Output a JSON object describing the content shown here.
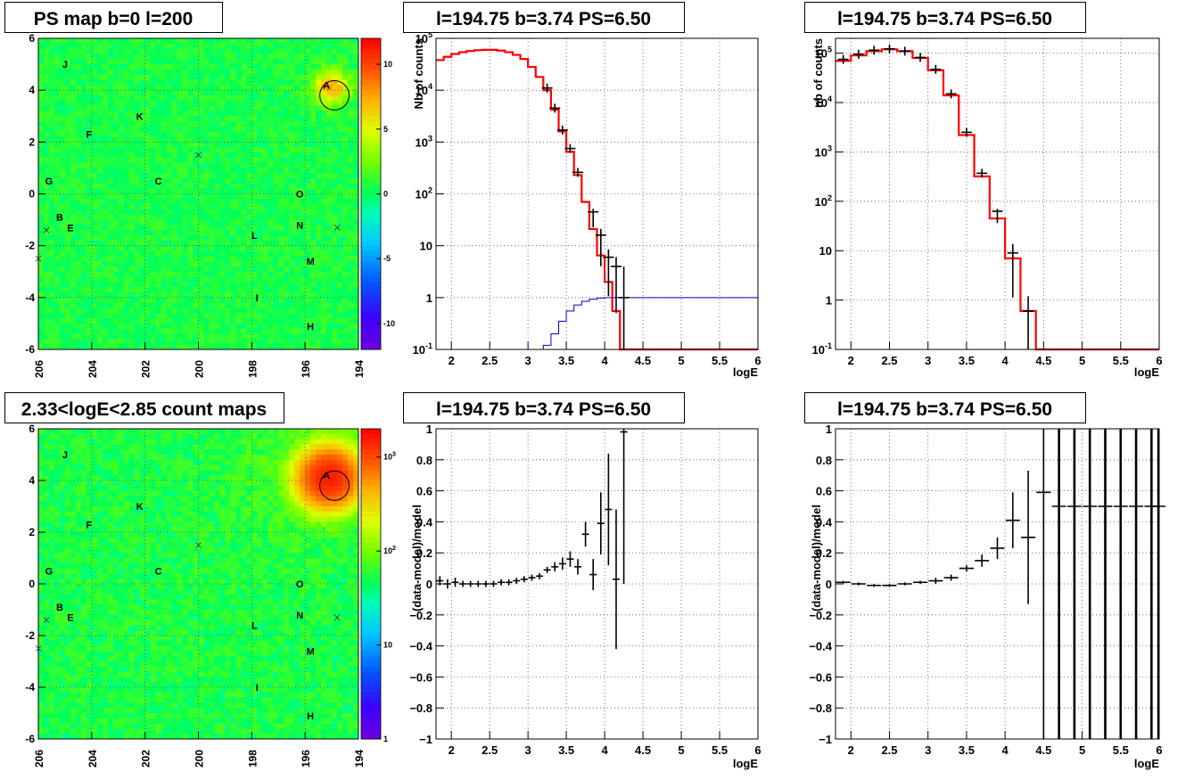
{
  "pads": [
    {
      "kind": "map",
      "title": "PS map b=0 l=200",
      "x_ticks": [
        "206",
        "204",
        "202",
        "200",
        "198",
        "196",
        "194"
      ],
      "y_ticks": [
        "6",
        "4",
        "2",
        "0",
        "-2",
        "-4",
        "-6"
      ],
      "palette_ticks": [
        "10",
        "5",
        "0",
        "-5",
        "-10"
      ],
      "labels": [
        "J",
        "A",
        "K",
        "F",
        "G",
        "C",
        "O",
        "B",
        "E",
        "N",
        "L",
        "M",
        "I",
        "H"
      ]
    },
    {
      "kind": "spectrum",
      "title": "l=194.75 b=3.74 PS=6.50",
      "ylabel": "Nb of counts",
      "xlabel": "logE",
      "x_ticks": [
        "2",
        "2.5",
        "3",
        "3.5",
        "4",
        "4.5",
        "5",
        "5.5",
        "6"
      ],
      "y_ticks": [
        "10^5",
        "10^4",
        "10^3",
        "10^2",
        "10",
        "1",
        "10^-1"
      ]
    },
    {
      "kind": "spectrum",
      "title": "l=194.75 b=3.74 PS=6.50",
      "ylabel": "nb of counts",
      "xlabel": "logE",
      "x_ticks": [
        "2",
        "2.5",
        "3",
        "3.5",
        "4",
        "4.5",
        "5",
        "5.5",
        "6"
      ],
      "y_ticks": [
        "10^5",
        "10^4",
        "10^3",
        "10^2",
        "10",
        "1",
        "10^-1"
      ]
    },
    {
      "kind": "map",
      "title": "2.33<logE<2.85 count maps",
      "x_ticks": [
        "206",
        "204",
        "202",
        "200",
        "198",
        "196",
        "194"
      ],
      "y_ticks": [
        "6",
        "4",
        "2",
        "0",
        "-2",
        "-4",
        "-6"
      ],
      "palette_ticks": [
        "10^3",
        "10^2",
        "10",
        "1"
      ],
      "labels": [
        "J",
        "A",
        "K",
        "F",
        "G",
        "C",
        "O",
        "B",
        "E",
        "N",
        "L",
        "M",
        "I",
        "H"
      ]
    },
    {
      "kind": "residual",
      "title": "l=194.75 b=3.74 PS=6.50",
      "ylabel": "(data-model)/model",
      "xlabel": "logE",
      "x_ticks": [
        "2",
        "2.5",
        "3",
        "3.5",
        "4",
        "4.5",
        "5",
        "5.5",
        "6"
      ],
      "y_ticks": [
        "1",
        "0.8",
        "0.6",
        "0.4",
        "0.2",
        "0",
        "−0.2",
        "−0.4",
        "−0.6",
        "−0.8",
        "−1"
      ]
    },
    {
      "kind": "residual",
      "title": "l=194.75 b=3.74 PS=6.50",
      "ylabel": "(data-model)/model",
      "xlabel": "logE",
      "x_ticks": [
        "2",
        "2.5",
        "3",
        "3.5",
        "4",
        "4.5",
        "5",
        "5.5",
        "6"
      ],
      "y_ticks": [
        "1",
        "0.8",
        "0.6",
        "0.4",
        "0.2",
        "0",
        "−0.2",
        "−0.4",
        "−0.6",
        "−0.8",
        "−1"
      ]
    }
  ],
  "chart_data": [
    {
      "type": "heatmap",
      "title": "PS map b=0 l=200",
      "xlim": [
        206,
        194
      ],
      "ylim": [
        -6,
        6
      ],
      "color_range": [
        -12,
        12
      ],
      "grid": true,
      "hotspot": {
        "x": 195,
        "y": 4.1,
        "level": 7
      },
      "circle": {
        "x": 194.9,
        "y": 3.8,
        "r": 0.55
      },
      "crosses": [
        {
          "x": 200,
          "y": 1.5
        },
        {
          "x": 205.7,
          "y": -1.4
        },
        {
          "x": 194.8,
          "y": -1.3
        },
        {
          "x": 206,
          "y": -2.5
        }
      ],
      "sources": [
        {
          "name": "J",
          "x": 205.0,
          "y": 5.0
        },
        {
          "name": "A",
          "x": 195.2,
          "y": 4.2
        },
        {
          "name": "K",
          "x": 202.2,
          "y": 3.0
        },
        {
          "name": "F",
          "x": 204.1,
          "y": 2.3
        },
        {
          "name": "G",
          "x": 205.6,
          "y": 0.5
        },
        {
          "name": "C",
          "x": 201.5,
          "y": 0.5
        },
        {
          "name": "O",
          "x": 196.2,
          "y": 0.0
        },
        {
          "name": "B",
          "x": 205.2,
          "y": -0.9
        },
        {
          "name": "E",
          "x": 204.8,
          "y": -1.3
        },
        {
          "name": "N",
          "x": 196.2,
          "y": -1.2
        },
        {
          "name": "L",
          "x": 197.9,
          "y": -1.6
        },
        {
          "name": "M",
          "x": 195.8,
          "y": -2.6
        },
        {
          "name": "I",
          "x": 197.8,
          "y": -4.0
        },
        {
          "name": "H",
          "x": 195.8,
          "y": -5.1
        }
      ]
    },
    {
      "type": "line",
      "title": "l=194.75 b=3.74 PS=6.50",
      "xlabel": "logE",
      "ylabel": "Nb of counts",
      "xlim": [
        1.8,
        6
      ],
      "ylim": [
        0.1,
        100000
      ],
      "log_y": true,
      "grid": true,
      "bin_edges": [
        1.8,
        1.9,
        2.0,
        2.1,
        2.2,
        2.3,
        2.4,
        2.5,
        2.6,
        2.7,
        2.8,
        2.9,
        3.0,
        3.1,
        3.2,
        3.3,
        3.4,
        3.5,
        3.6,
        3.7,
        3.8,
        3.9,
        4.0,
        4.1,
        4.2,
        4.3,
        4.4,
        4.5,
        4.6,
        4.7,
        4.8,
        4.9,
        5.0,
        5.1,
        5.2,
        5.3,
        5.4,
        5.5,
        5.6,
        5.7,
        5.8,
        5.9,
        6.0
      ],
      "series": [
        {
          "role": "model",
          "color": "#ff0000",
          "values": [
            38000,
            44000,
            50000,
            54000,
            57000,
            59000,
            60000,
            60000,
            58000,
            54000,
            48000,
            40000,
            28000,
            18000,
            10000,
            4200,
            1600,
            650,
            230,
            70,
            21,
            6.5,
            2.0,
            0.55,
            0.1,
            0.1,
            0.1,
            0.1,
            0.1,
            0.1,
            0.1,
            0.1,
            0.1,
            0.1,
            0.1,
            0.1,
            0.1,
            0.1,
            0.1,
            0.1,
            0.1,
            0.1
          ]
        },
        {
          "role": "background",
          "color": "#0000cc",
          "values": [
            0.1,
            0.1,
            0.1,
            0.1,
            0.1,
            0.1,
            0.1,
            0.1,
            0.1,
            0.1,
            0.1,
            0.1,
            0.1,
            0.1,
            0.12,
            0.2,
            0.35,
            0.55,
            0.72,
            0.85,
            0.93,
            0.98,
            1.0,
            1.0,
            1.0,
            1.0,
            1.0,
            1.0,
            1.0,
            1.0,
            1.0,
            1.0,
            1.0,
            1.0,
            1.0,
            1.0,
            1.0,
            1.0,
            1.0,
            1.0,
            1.0,
            1.0
          ]
        },
        {
          "role": "data",
          "color": "#000000",
          "points": [
            {
              "x": 3.25,
              "y": 11000,
              "err": 0
            },
            {
              "x": 3.35,
              "y": 4500,
              "err": 0
            },
            {
              "x": 3.45,
              "y": 1700,
              "err": 0
            },
            {
              "x": 3.55,
              "y": 750,
              "err": 0
            },
            {
              "x": 3.65,
              "y": 260,
              "err": 0
            },
            {
              "x": 3.85,
              "y": 45,
              "err": 0.1
            },
            {
              "x": 3.95,
              "y": 16,
              "err": 0.2
            },
            {
              "x": 4.05,
              "y": 6,
              "err": 0.25
            },
            {
              "x": 4.15,
              "y": 4,
              "err": 0.3
            },
            {
              "x": 4.25,
              "y": 1,
              "err": 1.0
            }
          ]
        }
      ]
    },
    {
      "type": "line",
      "title": "l=194.75 b=3.74 PS=6.50",
      "xlabel": "logE",
      "ylabel": "nb of counts",
      "xlim": [
        1.8,
        6
      ],
      "ylim": [
        0.1,
        200000
      ],
      "log_y": true,
      "grid": true,
      "bin_edges": [
        1.8,
        2.0,
        2.2,
        2.4,
        2.6,
        2.8,
        3.0,
        3.2,
        3.4,
        3.6,
        3.8,
        4.0,
        4.2,
        4.4,
        4.6,
        4.8,
        5.0,
        5.2,
        5.4,
        5.6,
        5.8,
        6.0
      ],
      "series": [
        {
          "role": "model",
          "color": "#ff0000",
          "values": [
            70000,
            90000,
            110000,
            120000,
            110000,
            80000,
            45000,
            14000,
            2200,
            320,
            45,
            7,
            0.6,
            0.1,
            0.1,
            0.1,
            0.1,
            0.1,
            0.1,
            0.1,
            0.1
          ]
        },
        {
          "role": "data",
          "color": "#000000",
          "points": [
            {
              "x": 1.9,
              "y": 75000,
              "err": 0
            },
            {
              "x": 2.1,
              "y": 95000,
              "err": 0
            },
            {
              "x": 2.3,
              "y": 115000,
              "err": 0
            },
            {
              "x": 2.5,
              "y": 122000,
              "err": 0
            },
            {
              "x": 2.7,
              "y": 110000,
              "err": 0
            },
            {
              "x": 2.9,
              "y": 82000,
              "err": 0
            },
            {
              "x": 3.1,
              "y": 47000,
              "err": 0
            },
            {
              "x": 3.3,
              "y": 15000,
              "err": 0
            },
            {
              "x": 3.5,
              "y": 2500,
              "err": 0
            },
            {
              "x": 3.7,
              "y": 370,
              "err": 0
            },
            {
              "x": 3.9,
              "y": 63,
              "err": 0.08
            },
            {
              "x": 4.1,
              "y": 9,
              "err": 0.3
            },
            {
              "x": 4.3,
              "y": 0.6,
              "err": 0.5
            }
          ]
        }
      ]
    },
    {
      "type": "heatmap",
      "title": "2.33<logE<2.85 count maps",
      "xlim": [
        206,
        194
      ],
      "ylim": [
        -6,
        6
      ],
      "color_range": [
        1,
        2000
      ],
      "log_color": true,
      "grid": true,
      "hotspot": {
        "x": 195.1,
        "y": 4.1,
        "level": 1500
      },
      "background_level": 60,
      "circle": {
        "x": 194.9,
        "y": 3.8,
        "r": 0.55
      },
      "crosses": [
        {
          "x": 200,
          "y": 1.5
        },
        {
          "x": 205.7,
          "y": -1.4
        },
        {
          "x": 194.8,
          "y": -1.3
        },
        {
          "x": 206,
          "y": -2.5
        }
      ],
      "sources": [
        {
          "name": "J",
          "x": 205.0,
          "y": 5.0
        },
        {
          "name": "A",
          "x": 195.2,
          "y": 4.2
        },
        {
          "name": "K",
          "x": 202.2,
          "y": 3.0
        },
        {
          "name": "F",
          "x": 204.1,
          "y": 2.3
        },
        {
          "name": "G",
          "x": 205.6,
          "y": 0.5
        },
        {
          "name": "C",
          "x": 201.5,
          "y": 0.5
        },
        {
          "name": "O",
          "x": 196.2,
          "y": 0.0
        },
        {
          "name": "B",
          "x": 205.2,
          "y": -0.9
        },
        {
          "name": "E",
          "x": 204.8,
          "y": -1.3
        },
        {
          "name": "N",
          "x": 196.2,
          "y": -1.2
        },
        {
          "name": "L",
          "x": 197.9,
          "y": -1.6
        },
        {
          "name": "M",
          "x": 195.8,
          "y": -2.6
        },
        {
          "name": "I",
          "x": 197.8,
          "y": -4.0
        },
        {
          "name": "H",
          "x": 195.8,
          "y": -5.1
        }
      ]
    },
    {
      "type": "scatter",
      "title": "l=194.75 b=3.74 PS=6.50",
      "xlabel": "logE",
      "ylabel": "(data-model)/model",
      "xlim": [
        1.8,
        6
      ],
      "ylim": [
        -1,
        1
      ],
      "grid": true,
      "points": [
        {
          "x": 1.85,
          "y": 0.02,
          "err": 0.03
        },
        {
          "x": 1.95,
          "y": 0.0,
          "err": 0.03
        },
        {
          "x": 2.05,
          "y": 0.01,
          "err": 0.03
        },
        {
          "x": 2.15,
          "y": 0.0,
          "err": 0.02
        },
        {
          "x": 2.25,
          "y": 0.0,
          "err": 0.02
        },
        {
          "x": 2.35,
          "y": 0.0,
          "err": 0.02
        },
        {
          "x": 2.45,
          "y": 0.0,
          "err": 0.02
        },
        {
          "x": 2.55,
          "y": 0.0,
          "err": 0.02
        },
        {
          "x": 2.65,
          "y": 0.01,
          "err": 0.02
        },
        {
          "x": 2.75,
          "y": 0.01,
          "err": 0.02
        },
        {
          "x": 2.85,
          "y": 0.02,
          "err": 0.02
        },
        {
          "x": 2.95,
          "y": 0.03,
          "err": 0.02
        },
        {
          "x": 3.05,
          "y": 0.04,
          "err": 0.02
        },
        {
          "x": 3.15,
          "y": 0.05,
          "err": 0.02
        },
        {
          "x": 3.25,
          "y": 0.09,
          "err": 0.02
        },
        {
          "x": 3.35,
          "y": 0.11,
          "err": 0.03
        },
        {
          "x": 3.45,
          "y": 0.13,
          "err": 0.04
        },
        {
          "x": 3.55,
          "y": 0.16,
          "err": 0.05
        },
        {
          "x": 3.65,
          "y": 0.11,
          "err": 0.05
        },
        {
          "x": 3.75,
          "y": 0.32,
          "err": 0.08
        },
        {
          "x": 3.85,
          "y": 0.06,
          "err": 0.1
        },
        {
          "x": 3.95,
          "y": 0.39,
          "err": 0.2
        },
        {
          "x": 4.05,
          "y": 0.48,
          "err": 0.36
        },
        {
          "x": 4.15,
          "y": 0.03,
          "err": 0.45
        },
        {
          "x": 4.25,
          "y": 0.98,
          "err": 0.98
        }
      ]
    },
    {
      "type": "scatter",
      "title": "l=194.75 b=3.74 PS=6.50",
      "xlabel": "logE",
      "ylabel": "(data-model)/model",
      "xlim": [
        1.8,
        6
      ],
      "ylim": [
        -1,
        1
      ],
      "grid": true,
      "points": [
        {
          "x": 1.9,
          "y": 0.01,
          "err": 0.01
        },
        {
          "x": 2.1,
          "y": 0.0,
          "err": 0.01
        },
        {
          "x": 2.3,
          "y": -0.01,
          "err": 0.01
        },
        {
          "x": 2.5,
          "y": -0.01,
          "err": 0.01
        },
        {
          "x": 2.7,
          "y": 0.0,
          "err": 0.01
        },
        {
          "x": 2.9,
          "y": 0.01,
          "err": 0.01
        },
        {
          "x": 3.1,
          "y": 0.02,
          "err": 0.02
        },
        {
          "x": 3.3,
          "y": 0.04,
          "err": 0.02
        },
        {
          "x": 3.5,
          "y": 0.1,
          "err": 0.02
        },
        {
          "x": 3.7,
          "y": 0.15,
          "err": 0.04
        },
        {
          "x": 3.9,
          "y": 0.23,
          "err": 0.07
        },
        {
          "x": 4.1,
          "y": 0.41,
          "err": 0.18
        },
        {
          "x": 4.3,
          "y": 0.3,
          "err": 0.43
        },
        {
          "x": 4.5,
          "y": 0.59,
          "err": 1.6
        },
        {
          "x": 4.7,
          "y": 0.5,
          "err": 5
        },
        {
          "x": 4.9,
          "y": 0.5,
          "err": 5
        },
        {
          "x": 5.1,
          "y": 0.5,
          "err": 5
        },
        {
          "x": 5.3,
          "y": 0.5,
          "err": 5
        },
        {
          "x": 5.5,
          "y": 0.5,
          "err": 5
        },
        {
          "x": 5.7,
          "y": 0.5,
          "err": 5
        },
        {
          "x": 5.9,
          "y": 0.5,
          "err": 5
        },
        {
          "x": 6.05,
          "y": 0.5,
          "err": 5
        }
      ]
    }
  ]
}
